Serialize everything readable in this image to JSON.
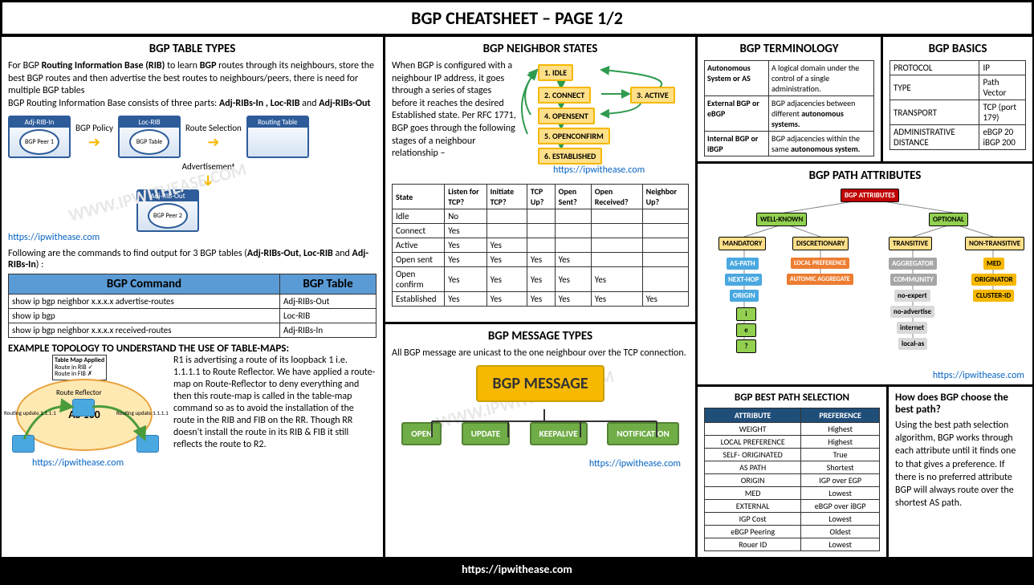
{
  "header": {
    "title": "BGP CHEATSHEET – PAGE 1/2"
  },
  "footer": {
    "url": "https://ipwithease.com"
  },
  "watermark": "WWW.IPWITHEASE.COM",
  "link_text": "https://ipwithease.com",
  "table_types": {
    "title": "BGP TABLE TYPES",
    "intro_pre": "For BGP ",
    "intro_b1": "Routing Information Base (RIB)",
    "intro_mid": " to learn ",
    "intro_b2": "BGP",
    "intro_post": " routes through its neighbours, store the best BGP routes and then advertise the best routes to neighbours/peers, there is need for multiple BGP tables",
    "intro2_pre": "BGP Routing Information Base consists of three parts: ",
    "intro2_b": "Adj-RIBs-In , Loc-RIB",
    "intro2_mid": " and ",
    "intro2_b2": "Adj-RIBs-Out",
    "rib": {
      "in": "Adj-RIB-In",
      "in_sub": "BGP Peer 1",
      "loc": "Loc-RIB",
      "loc_sub": "BGP Table",
      "rt": "Routing Table",
      "out": "Adj-RIB-Out",
      "out_sub": "BGP Peer 2",
      "policy": "BGP Policy",
      "route_sel": "Route Selection",
      "adv": "Advertisement"
    },
    "cmd_intro_pre": "Following are the commands to find output for 3 BGP tables (",
    "cmd_intro_b": "Adj-RIBs-Out, Loc-RIB",
    "cmd_intro_mid": " and ",
    "cmd_intro_b2": "Adj-RIBs-In",
    "cmd_intro_post": ") :",
    "cmd_h1": "BGP Command",
    "cmd_h2": "BGP Table",
    "cmds": [
      {
        "c": "show ip bgp neighbor x.x.x.x advertise-routes",
        "t": "Adj-RIBs-Out"
      },
      {
        "c": "show ip bgp",
        "t": "Loc-RIB"
      },
      {
        "c": "show ip bgp neighbor x.x.x.x received-routes",
        "t": "Adj-RIBs-In"
      }
    ],
    "topo_title": "EXAMPLE TOPOLOGY TO UNDERSTAND THE USE OF TABLE-MAPS:",
    "topo": {
      "as": "AS 100",
      "map_title": "Table Map Applied",
      "map_r1": "Route in RIB ✓",
      "map_r2": "Route in FIB ✗",
      "rr": "Route Reflector",
      "upd1": "Routing update 1.1.1.1",
      "upd2": "Routing update 1.1.1.1",
      "text": "R1 is advertising a route of its loopback 1 i.e. 1.1.1.1 to Route Reflector. We have applied a route-map on Route-Reflector to deny everything and then this route-map is called in the table-map command so as to avoid the installation of the route in the RIB and FIB on the RR. Though RR doesn't install the route in its RIB & FIB it still reflects the route to R2."
    }
  },
  "neighbor_states": {
    "title": "BGP NEIGHBOR STATES",
    "text": "When BGP is configured with a neighbour IP address, it goes through a series of stages before it reaches the desired Established state. Per RFC 1771,  BGP goes through the following stages of a neighbour relationship –",
    "states": [
      "1. IDLE",
      "2. CONNECT",
      "3. ACTIVE",
      "4. OPENSENT",
      "5. OPENCONFIRM",
      "6. ESTABLISHED"
    ],
    "table": {
      "headers": [
        "State",
        "Listen for TCP?",
        "Initiate TCP?",
        "TCP Up?",
        "Open Sent?",
        "Open Received?",
        "Neighbor Up?"
      ],
      "rows": [
        [
          "Idle",
          "No",
          "",
          "",
          "",
          "",
          ""
        ],
        [
          "Connect",
          "Yes",
          "",
          "",
          "",
          "",
          ""
        ],
        [
          "Active",
          "Yes",
          "Yes",
          "",
          "",
          "",
          ""
        ],
        [
          "Open sent",
          "Yes",
          "Yes",
          "Yes",
          "Yes",
          "",
          ""
        ],
        [
          "Open confirm",
          "Yes",
          "Yes",
          "Yes",
          "Yes",
          "Yes",
          ""
        ],
        [
          "Established",
          "Yes",
          "Yes",
          "Yes",
          "Yes",
          "Yes",
          "Yes"
        ]
      ]
    }
  },
  "msg_types": {
    "title": "BGP MESSAGE TYPES",
    "intro": "All BGP message are unicast to the one neighbour over the TCP connection.",
    "root": "BGP MESSAGE",
    "leaves": [
      "OPEN",
      "UPDATE",
      "KEEPALIVE",
      "NOTIFICATION"
    ]
  },
  "terminology": {
    "title": "BGP TERMINOLOGY",
    "rows": [
      {
        "k": "Autonomous System or AS",
        "v": "A logical domain under the control of a single administration."
      },
      {
        "k": "External BGP or eBGP",
        "v_pre": "BGP adjacencies between different ",
        "v_b": "autonomous systems."
      },
      {
        "k": "Internal BGP or iBGP",
        "v_pre": "BGP adjacencies within the same ",
        "v_b": "autonomous system."
      }
    ]
  },
  "basics": {
    "title": "BGP BASICS",
    "rows": [
      {
        "k": "PROTOCOL",
        "v": "IP"
      },
      {
        "k": "TYPE",
        "v": "Path Vector"
      },
      {
        "k": "TRANSPORT",
        "v": "TCP (port 179)"
      },
      {
        "k": "ADMINISTRATIVE DISTANCE",
        "v": "eBGP  20\niBGP  200"
      }
    ]
  },
  "path_attrs": {
    "title": "BGP PATH ATTRIBUTES",
    "root": "BGP ATTRIBUTES",
    "wellknown": "WELL-KNOWN",
    "optional": "OPTIONAL",
    "mandatory": "MANDATORY",
    "discretionary": "DISCRETIONARY",
    "transitive": "TRANSITIVE",
    "nontransitive": "NON-TRANSITIVE",
    "m_items": [
      "AS-PATH",
      "NEXT-HOP",
      "ORIGIN"
    ],
    "m_sub": [
      "i",
      "e",
      "?"
    ],
    "d_items": [
      "LOCAL PREFERENCE",
      "AUTOMIC AGGREGATE"
    ],
    "t_items": [
      "AGGREGATOR",
      "COMMUNITY"
    ],
    "t_sub": [
      "no-expert",
      "no-advertise",
      "internet",
      "local-as"
    ],
    "nt_items": [
      "MED",
      "ORIGINATOR",
      "CLUSTER-ID"
    ]
  },
  "best_path": {
    "title": "BGP BEST PATH SELECTION",
    "h1": "ATTRIBUTE",
    "h2": "PREFERENCE",
    "rows": [
      [
        "WEIGHT",
        "Highest"
      ],
      [
        "LOCAL PREFERENCE",
        "Highest"
      ],
      [
        "SELF- ORIGINATED",
        "True"
      ],
      [
        "AS PATH",
        "Shortest"
      ],
      [
        "ORIGIN",
        "IGP over EGP"
      ],
      [
        "MED",
        "Lowest"
      ],
      [
        "EXTERNAL",
        "eBGP over iBGP"
      ],
      [
        "IGP Cost",
        "Lowest"
      ],
      [
        "eBGP Peering",
        "Oldest"
      ],
      [
        "Rouer ID",
        "Lowest"
      ]
    ],
    "q": "How does BGP choose the best path?",
    "a": "Using the best path selection algorithm, BGP works through each attribute until it finds one to that gives a preference. If there is no preferred attribute BGP will always route over the shortest AS path."
  },
  "colors": {
    "blue_header": "#5b9bd5",
    "dark_blue": "#1f4e79",
    "orange_box": "#f6b800",
    "green_box": "#70ad47",
    "green_light": "#92d050",
    "red": "#c00000",
    "blue_node": "#4aa8e0",
    "gray_node": "#a6a6a6",
    "orange_node": "#ed7d31"
  }
}
